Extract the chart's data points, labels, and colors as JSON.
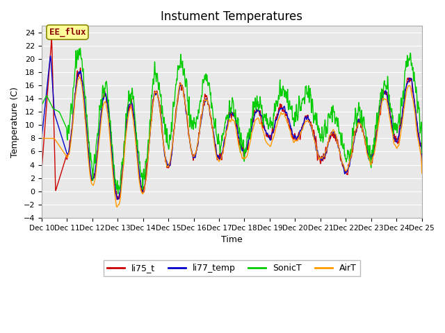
{
  "title": "Instument Temperatures",
  "xlabel": "Time",
  "ylabel": "Temperature (C)",
  "ylim": [
    -4,
    25
  ],
  "yticks": [
    -4,
    -2,
    0,
    2,
    4,
    6,
    8,
    10,
    12,
    14,
    16,
    18,
    20,
    22,
    24
  ],
  "xlim": [
    0,
    15
  ],
  "xtick_labels": [
    "Dec 10",
    "Dec 11",
    "Dec 12",
    "Dec 13",
    "Dec 14",
    "Dec 15",
    "Dec 16",
    "Dec 17",
    "Dec 18",
    "Dec 19",
    "Dec 20",
    "Dec 21",
    "Dec 22",
    "Dec 23",
    "Dec 24",
    "Dec 25"
  ],
  "colors": {
    "li75_t": "#cc0000",
    "li77_temp": "#0000cc",
    "SonicT": "#00cc00",
    "AirT": "#ff9900"
  },
  "annotation_text": "EE_flux",
  "annotation_color": "#880000",
  "annotation_bg": "#ffff99",
  "annotation_border": "#888800",
  "fig_bg": "#ffffff",
  "plot_bg": "#e8e8e8",
  "grid_color": "#ffffff",
  "linewidth": 1.0,
  "title_fontsize": 12
}
